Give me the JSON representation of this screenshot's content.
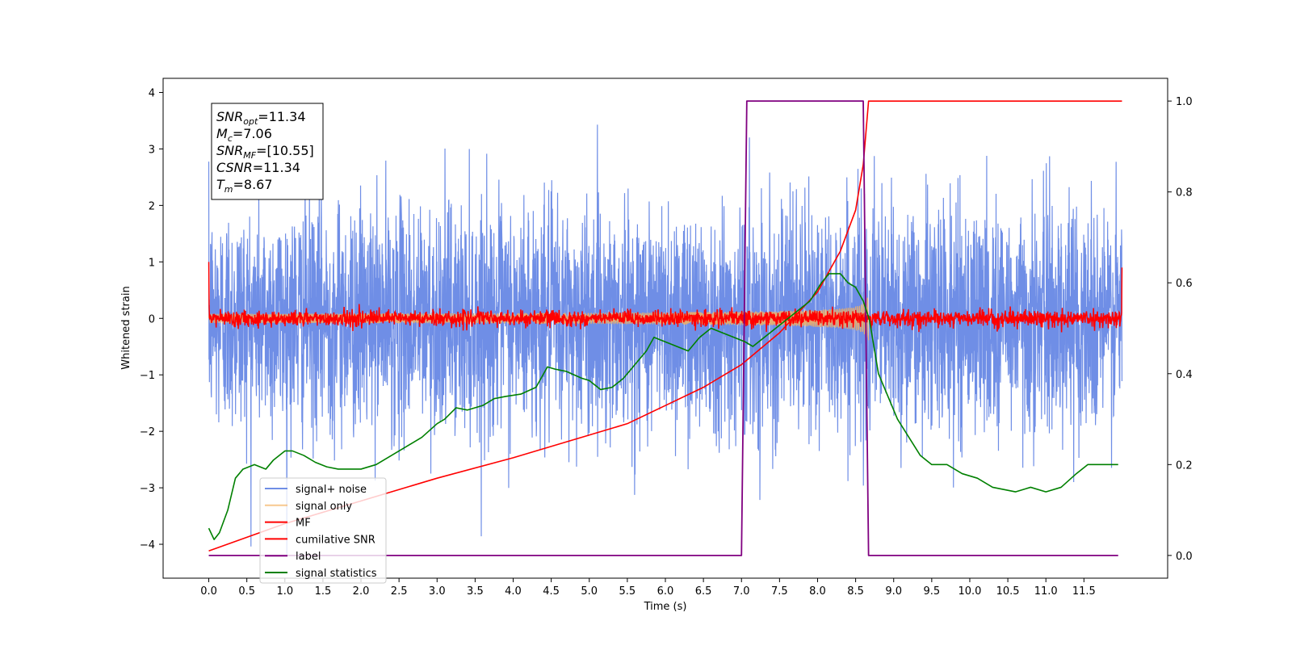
{
  "chart_data": {
    "type": "line",
    "title": "",
    "xlabel": "Time (s)",
    "ylabel": "Whitened strain",
    "xlim": [
      -0.6,
      12.6
    ],
    "ylim": [
      -4.6,
      4.25
    ],
    "ylim_right": [
      -0.05,
      1.05
    ],
    "grid": false,
    "legend_position": "lower-left",
    "x_ticks": [
      "0.0",
      "0.5",
      "1.0",
      "1.5",
      "2.0",
      "2.5",
      "3.0",
      "3.5",
      "4.0",
      "4.5",
      "5.0",
      "5.5",
      "6.0",
      "6.5",
      "7.0",
      "7.5",
      "8.0",
      "8.5",
      "9.0",
      "9.5",
      "10.0",
      "10.5",
      "11.0",
      "11.5"
    ],
    "y_ticks_left": [
      "−4",
      "−3",
      "−2",
      "−1",
      "0",
      "1",
      "2",
      "3",
      "4"
    ],
    "y_ticks_right": [
      "0.0",
      "0.2",
      "0.4",
      "0.6",
      "0.8",
      "1.0"
    ],
    "colors": {
      "signal_noise": "#6f8ee6",
      "signal_only": "#f5b060",
      "mf": "#ff0000",
      "cumulative_snr": "#ff0000",
      "label": "#800080",
      "signal_statistics": "#008000"
    },
    "series": [
      {
        "name": "signal+ noise",
        "axis": "left",
        "kind": "noise",
        "amplitude_std": 1.0,
        "x_range": [
          0,
          12
        ]
      },
      {
        "name": "signal only",
        "axis": "left",
        "kind": "chirp",
        "x_range": [
          0,
          8.67
        ],
        "peak_amplitude": 0.75
      },
      {
        "name": "MF",
        "axis": "left",
        "kind": "noise",
        "amplitude_std": 0.07,
        "x_range": [
          0,
          12
        ]
      },
      {
        "name": "cumilative SNR",
        "axis": "right",
        "x": [
          0,
          1,
          2,
          3,
          4,
          5,
          5.5,
          6,
          6.5,
          7,
          7.5,
          8,
          8.3,
          8.5,
          8.6,
          8.67,
          12
        ],
        "y": [
          0.01,
          0.07,
          0.12,
          0.17,
          0.215,
          0.265,
          0.29,
          0.33,
          0.37,
          0.42,
          0.49,
          0.58,
          0.67,
          0.76,
          0.86,
          1.0,
          1.0
        ]
      },
      {
        "name": "label",
        "axis": "right",
        "x": [
          0,
          7.0,
          7.07,
          8.6,
          8.67,
          11.95
        ],
        "y": [
          0,
          0,
          1,
          1,
          0,
          0
        ]
      },
      {
        "name": "signal statistics",
        "axis": "right",
        "x": [
          0.0,
          0.07,
          0.14,
          0.25,
          0.35,
          0.45,
          0.6,
          0.75,
          0.85,
          1.0,
          1.1,
          1.25,
          1.4,
          1.55,
          1.7,
          1.85,
          2.0,
          2.2,
          2.4,
          2.6,
          2.8,
          3.0,
          3.1,
          3.25,
          3.4,
          3.6,
          3.75,
          3.9,
          4.1,
          4.3,
          4.45,
          4.55,
          4.7,
          4.9,
          5.0,
          5.15,
          5.3,
          5.45,
          5.6,
          5.75,
          5.85,
          6.0,
          6.15,
          6.3,
          6.45,
          6.6,
          6.75,
          6.9,
          7.05,
          7.15,
          7.3,
          7.45,
          7.6,
          7.75,
          7.9,
          8.05,
          8.15,
          8.3,
          8.4,
          8.5,
          8.6,
          8.68,
          8.8,
          8.95,
          9.05,
          9.2,
          9.35,
          9.5,
          9.7,
          9.9,
          10.1,
          10.3,
          10.6,
          10.8,
          11.0,
          11.2,
          11.4,
          11.55,
          11.7,
          11.95
        ],
        "y": [
          0.06,
          0.035,
          0.05,
          0.1,
          0.17,
          0.19,
          0.2,
          0.19,
          0.21,
          0.23,
          0.23,
          0.22,
          0.205,
          0.195,
          0.19,
          0.19,
          0.19,
          0.2,
          0.22,
          0.24,
          0.26,
          0.29,
          0.3,
          0.325,
          0.32,
          0.33,
          0.345,
          0.35,
          0.355,
          0.37,
          0.415,
          0.41,
          0.405,
          0.39,
          0.385,
          0.365,
          0.37,
          0.39,
          0.42,
          0.45,
          0.48,
          0.47,
          0.46,
          0.45,
          0.48,
          0.5,
          0.49,
          0.48,
          0.47,
          0.46,
          0.48,
          0.5,
          0.52,
          0.54,
          0.56,
          0.6,
          0.62,
          0.62,
          0.6,
          0.59,
          0.56,
          0.52,
          0.4,
          0.34,
          0.3,
          0.26,
          0.22,
          0.2,
          0.2,
          0.18,
          0.17,
          0.15,
          0.14,
          0.15,
          0.14,
          0.15,
          0.18,
          0.2,
          0.2,
          0.2
        ]
      }
    ],
    "annotations": [
      {
        "base": "SNR",
        "sub": "opt",
        "value": "=11.34"
      },
      {
        "base": "M",
        "sub": "c",
        "value": "=7.06"
      },
      {
        "base": "SNR",
        "sub": "MF",
        "value": "=[10.55]"
      },
      {
        "base": "CSNR",
        "sub": "",
        "value": "=11.34"
      },
      {
        "base": "T",
        "sub": "m",
        "value": "=8.67"
      }
    ]
  }
}
